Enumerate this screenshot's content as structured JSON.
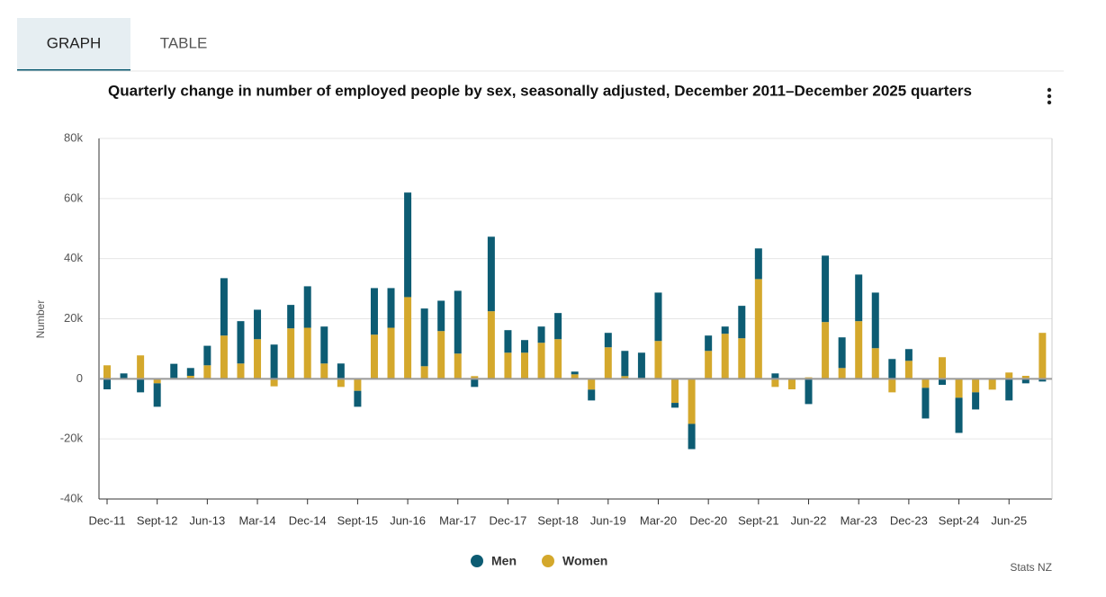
{
  "tabs": [
    "GRAPH",
    "TABLE"
  ],
  "chart_data": {
    "type": "bar",
    "stacking": "normal",
    "title": "Quarterly change in number of employed people by sex, seasonally adjusted, December 2011–December 2025 quarters",
    "y_label": "Number",
    "credit": "Stats NZ",
    "categories": [
      "Dec-11",
      null,
      null,
      "Sept-12",
      null,
      null,
      "Jun-13",
      null,
      null,
      "Mar-14",
      null,
      null,
      "Dec-14",
      null,
      null,
      "Sept-15",
      null,
      null,
      "Jun-16",
      null,
      null,
      "Mar-17",
      null,
      null,
      "Dec-17",
      null,
      null,
      "Sept-18",
      null,
      null,
      "Jun-19",
      null,
      null,
      "Mar-20",
      null,
      null,
      "Dec-20",
      null,
      null,
      "Sept-21",
      null,
      null,
      "Jun-22",
      null,
      null,
      "Mar-23",
      null,
      null,
      "Dec-23",
      null,
      null,
      "Sept-24",
      null,
      null,
      "Jun-25",
      null,
      null
    ],
    "series": [
      {
        "name": "Men",
        "color": "#0d5c73",
        "values": [
          -3500,
          1800,
          -4500,
          -7800,
          4700,
          2600,
          6500,
          19100,
          14100,
          9800,
          11400,
          7800,
          13800,
          12300,
          5100,
          -5300,
          15500,
          13200,
          34800,
          19200,
          10100,
          20900,
          -2700,
          24800,
          7500,
          4200,
          5400,
          8700,
          900,
          -3600,
          4800,
          8400,
          8400,
          16100,
          -1600,
          -8400,
          5100,
          2400,
          10800,
          10200,
          1800,
          0,
          -8400,
          22100,
          10200,
          15500,
          18500,
          6600,
          3900,
          -10200,
          -2000,
          -11700,
          -5700,
          0,
          -7200,
          -1500,
          -900
        ]
      },
      {
        "name": "Women",
        "color": "#d4a82c",
        "values": [
          4500,
          0,
          7800,
          -1500,
          300,
          1000,
          4500,
          14400,
          5100,
          13200,
          -2500,
          16800,
          17000,
          5100,
          -2700,
          -4000,
          14700,
          17000,
          27200,
          4200,
          15900,
          8400,
          900,
          22500,
          8700,
          8700,
          12000,
          13200,
          1500,
          -3600,
          10500,
          900,
          300,
          12600,
          -8000,
          -15000,
          9300,
          15000,
          13500,
          33200,
          -2700,
          -3500,
          500,
          18900,
          3600,
          19200,
          10200,
          -4500,
          6000,
          -3000,
          7200,
          -6300,
          -4500,
          -3600,
          2100,
          1000,
          15300
        ]
      }
    ],
    "ylim": [
      -40000,
      80000
    ],
    "yticks": [
      {
        "value": -40000,
        "label": "-40k"
      },
      {
        "value": -20000,
        "label": "-20k"
      },
      0,
      {
        "value": 20000,
        "label": "20k"
      },
      {
        "value": 40000,
        "label": "40k"
      },
      {
        "value": 60000,
        "label": "60k"
      },
      {
        "value": 80000,
        "label": "80k"
      }
    ],
    "grid": true,
    "legend": "bottom"
  }
}
